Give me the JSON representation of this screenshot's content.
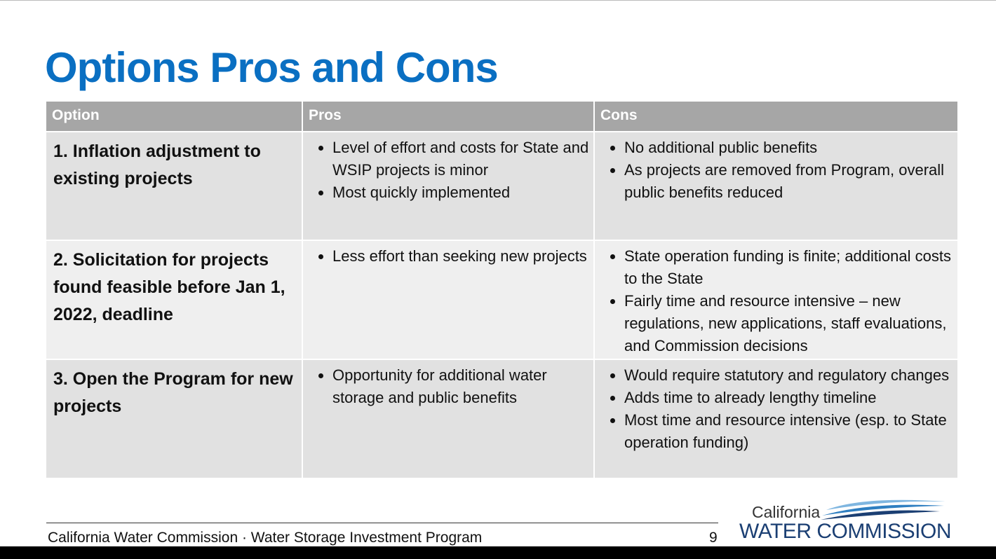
{
  "header": {
    "title": "Options Pros and Cons"
  },
  "table": {
    "columns": [
      "Option",
      "Pros",
      "Cons"
    ],
    "rows": [
      {
        "option": "1. Inflation adjustment to existing projects",
        "pros": [
          "Level of effort and costs for State and WSIP projects is minor",
          "Most quickly implemented"
        ],
        "cons": [
          "No additional public benefits",
          "As projects are removed from Program, overall public benefits reduced"
        ]
      },
      {
        "option": "2. Solicitation for projects found feasible before Jan 1, 2022, deadline",
        "pros": [
          "Less effort than seeking new projects"
        ],
        "cons": [
          "State operation funding is finite; additional costs to the State",
          "Fairly time and resource intensive – new regulations, new applications, staff evaluations, and Commission decisions"
        ]
      },
      {
        "option": "3. Open the Program for new projects",
        "pros": [
          "Opportunity for additional water storage and public benefits"
        ],
        "cons": [
          "Would require statutory and regulatory changes",
          "Adds time to already lengthy timeline",
          "Most time and resource intensive (esp. to State operation funding)"
        ]
      }
    ]
  },
  "footer": {
    "text": "California Water Commission · Water Storage Investment Program",
    "page": "9"
  },
  "logo": {
    "top": "California",
    "bottom": "WATER COMMISSION"
  }
}
